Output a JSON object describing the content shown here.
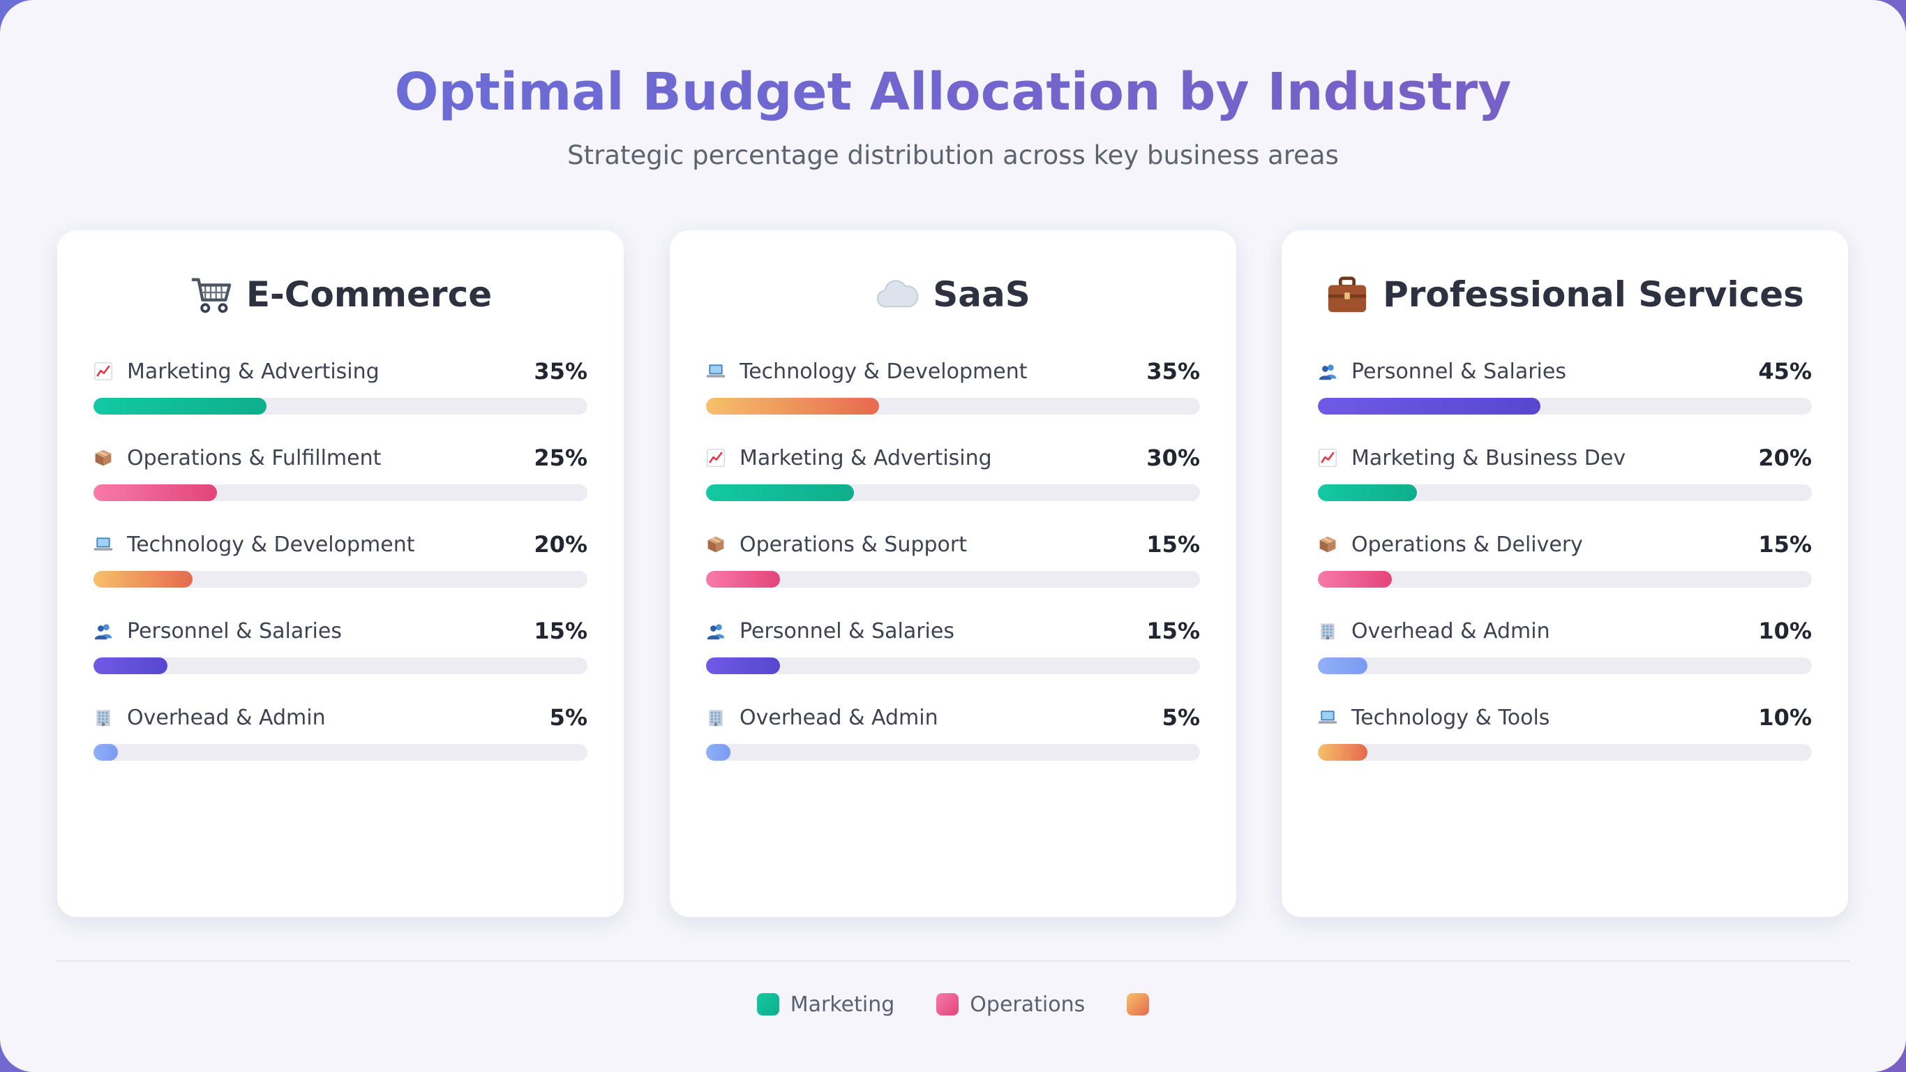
{
  "title": "Optimal Budget Allocation by Industry",
  "subtitle": "Strategic percentage distribution across key business areas",
  "colors": {
    "marketing": [
      "#12c9a3",
      "#0fae8c"
    ],
    "operations": [
      "#f77aa8",
      "#e2457a"
    ],
    "technology": [
      "#f7c06a",
      "#e56a4d"
    ],
    "personnel": [
      "#6f5ae6",
      "#5747cf"
    ],
    "overhead": [
      "#8fb0f8",
      "#7b9af2"
    ]
  },
  "chart_data": [
    {
      "type": "bar",
      "title": "E-Commerce",
      "icon": "shopping-cart-icon",
      "xlim": [
        0,
        100
      ],
      "unit": "%",
      "categories": [
        "Marketing & Advertising",
        "Operations & Fulfillment",
        "Technology & Development",
        "Personnel & Salaries",
        "Overhead & Admin"
      ],
      "values": [
        35,
        25,
        20,
        15,
        5
      ],
      "labels": [
        "35%",
        "25%",
        "20%",
        "15%",
        "5%"
      ],
      "kinds": [
        "marketing",
        "operations",
        "technology",
        "personnel",
        "overhead"
      ]
    },
    {
      "type": "bar",
      "title": "SaaS",
      "icon": "cloud-icon",
      "xlim": [
        0,
        100
      ],
      "unit": "%",
      "categories": [
        "Technology & Development",
        "Marketing & Advertising",
        "Operations & Support",
        "Personnel & Salaries",
        "Overhead & Admin"
      ],
      "values": [
        35,
        30,
        15,
        15,
        5
      ],
      "labels": [
        "35%",
        "30%",
        "15%",
        "15%",
        "5%"
      ],
      "kinds": [
        "technology",
        "marketing",
        "operations",
        "personnel",
        "overhead"
      ]
    },
    {
      "type": "bar",
      "title": "Professional Services",
      "icon": "briefcase-icon",
      "xlim": [
        0,
        100
      ],
      "unit": "%",
      "categories": [
        "Personnel & Salaries",
        "Marketing & Business Dev",
        "Operations & Delivery",
        "Overhead & Admin",
        "Technology & Tools"
      ],
      "values": [
        45,
        20,
        15,
        10,
        10
      ],
      "labels": [
        "45%",
        "20%",
        "15%",
        "10%",
        "10%"
      ],
      "kinds": [
        "personnel",
        "marketing",
        "operations",
        "overhead",
        "technology"
      ]
    }
  ],
  "legend": [
    {
      "label": "Marketing",
      "kind": "marketing"
    },
    {
      "label": "Operations",
      "kind": "operations"
    },
    {
      "label": "",
      "kind": "technology"
    }
  ]
}
